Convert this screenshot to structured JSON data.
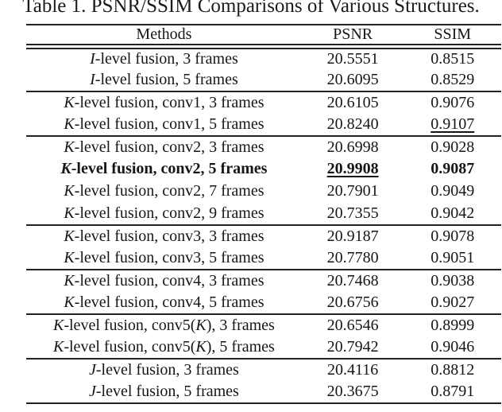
{
  "colors": {
    "background": "#ffffff",
    "text": "#161616",
    "rule": "#222222"
  },
  "caption": "Table 1. PSNR/SSIM Comparisons of Various Structures.",
  "table": {
    "headers": {
      "methods": "Methods",
      "psnr": "PSNR",
      "ssim": "SSIM"
    },
    "rows": [
      {
        "method": [
          {
            "text": "I",
            "italic": true
          },
          {
            "text": "-level fusion, 3 frames",
            "italic": false
          }
        ],
        "psnr": "20.5551",
        "ssim": "0.8515"
      },
      {
        "method": [
          {
            "text": "I",
            "italic": true
          },
          {
            "text": "-level fusion, 5 frames",
            "italic": false
          }
        ],
        "psnr": "20.6095",
        "ssim": "0.8529"
      },
      {
        "method": [
          {
            "text": "K",
            "italic": true
          },
          {
            "text": "-level fusion, conv1, 3 frames",
            "italic": false
          }
        ],
        "psnr": "20.6105",
        "ssim": "0.9076",
        "section_start": true
      },
      {
        "method": [
          {
            "text": "K",
            "italic": true
          },
          {
            "text": "-level fusion, conv1, 5 frames",
            "italic": false
          }
        ],
        "psnr": "20.8240",
        "ssim": "0.9107",
        "ssim_underline": true
      },
      {
        "method": [
          {
            "text": "K",
            "italic": true
          },
          {
            "text": "-level fusion, conv2, 3 frames",
            "italic": false
          }
        ],
        "psnr": "20.6998",
        "ssim": "0.9028",
        "section_start": true
      },
      {
        "method": [
          {
            "text": "K",
            "italic": true
          },
          {
            "text": "-level fusion, conv2, 5 frames",
            "italic": false
          }
        ],
        "psnr": "20.9908",
        "ssim": "0.9087",
        "bold": true,
        "psnr_underline": true
      },
      {
        "method": [
          {
            "text": "K",
            "italic": true
          },
          {
            "text": "-level fusion, conv2, 7 frames",
            "italic": false
          }
        ],
        "psnr": "20.7901",
        "ssim": "0.9049"
      },
      {
        "method": [
          {
            "text": "K",
            "italic": true
          },
          {
            "text": "-level fusion, conv2, 9 frames",
            "italic": false
          }
        ],
        "psnr": "20.7355",
        "ssim": "0.9042"
      },
      {
        "method": [
          {
            "text": "K",
            "italic": true
          },
          {
            "text": "-level fusion, conv3, 3 frames",
            "italic": false
          }
        ],
        "psnr": "20.9187",
        "ssim": "0.9078",
        "section_start": true
      },
      {
        "method": [
          {
            "text": "K",
            "italic": true
          },
          {
            "text": "-level fusion, conv3, 5 frames",
            "italic": false
          }
        ],
        "psnr": "20.7780",
        "ssim": "0.9051"
      },
      {
        "method": [
          {
            "text": "K",
            "italic": true
          },
          {
            "text": "-level fusion, conv4, 3 frames",
            "italic": false
          }
        ],
        "psnr": "20.7468",
        "ssim": "0.9038",
        "section_start": true
      },
      {
        "method": [
          {
            "text": "K",
            "italic": true
          },
          {
            "text": "-level fusion, conv4, 5 frames",
            "italic": false
          }
        ],
        "psnr": "20.6756",
        "ssim": "0.9027"
      },
      {
        "method": [
          {
            "text": "K",
            "italic": true
          },
          {
            "text": "-level fusion, conv5(",
            "italic": false
          },
          {
            "text": "K",
            "italic": true
          },
          {
            "text": "), 3 frames",
            "italic": false
          }
        ],
        "psnr": "20.6546",
        "ssim": "0.8999",
        "section_start": true
      },
      {
        "method": [
          {
            "text": "K",
            "italic": true
          },
          {
            "text": "-level fusion, conv5(",
            "italic": false
          },
          {
            "text": "K",
            "italic": true
          },
          {
            "text": "), 5 frames",
            "italic": false
          }
        ],
        "psnr": "20.7942",
        "ssim": "0.9046"
      },
      {
        "method": [
          {
            "text": "J",
            "italic": true
          },
          {
            "text": "-level fusion, 3 frames",
            "italic": false
          }
        ],
        "psnr": "20.4116",
        "ssim": "0.8812",
        "section_start": true
      },
      {
        "method": [
          {
            "text": "J",
            "italic": true
          },
          {
            "text": "-level fusion, 5 frames",
            "italic": false
          }
        ],
        "psnr": "20.3675",
        "ssim": "0.8791"
      }
    ]
  }
}
